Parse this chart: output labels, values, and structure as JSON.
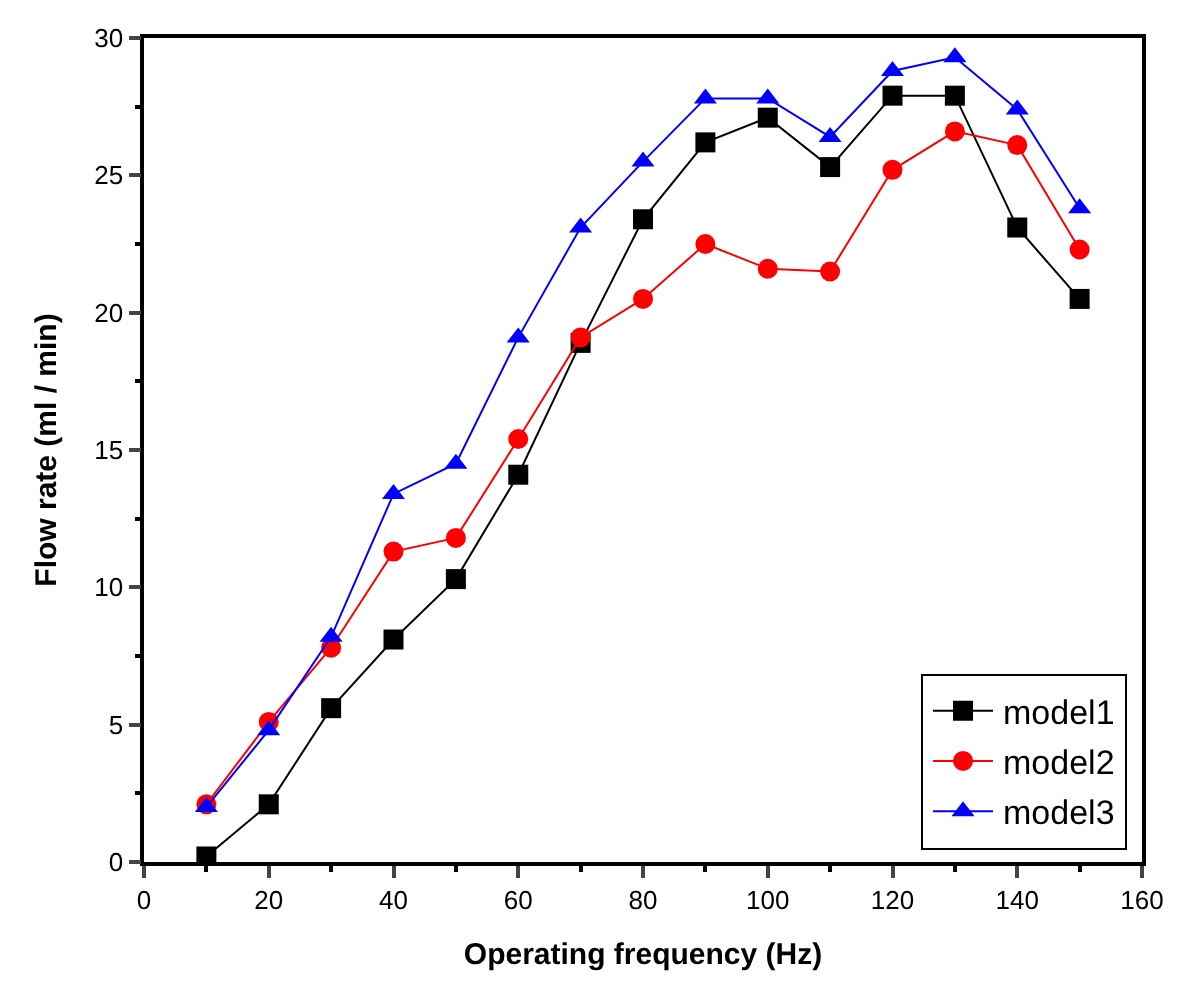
{
  "chart_data": {
    "type": "line",
    "xlabel": "Operating frequency (Hz)",
    "ylabel": "Flow rate (ml / min)",
    "x": [
      10,
      20,
      30,
      40,
      50,
      60,
      70,
      80,
      90,
      100,
      110,
      120,
      130,
      140,
      150
    ],
    "series": [
      {
        "name": "model1",
        "color": "#000000",
        "marker": "square",
        "values": [
          0.2,
          2.1,
          5.6,
          8.1,
          10.3,
          14.1,
          18.9,
          23.4,
          26.2,
          27.1,
          25.3,
          27.9,
          27.9,
          23.1,
          20.5
        ]
      },
      {
        "name": "model2",
        "color": "#ff0000",
        "marker": "circle",
        "values": [
          2.1,
          5.1,
          7.8,
          11.3,
          11.8,
          15.4,
          19.1,
          20.5,
          22.5,
          21.6,
          21.5,
          25.2,
          26.6,
          26.1,
          22.3
        ]
      },
      {
        "name": "model3",
        "color": "#0000ff",
        "marker": "triangle",
        "values": [
          2.0,
          4.8,
          8.2,
          13.4,
          14.5,
          19.1,
          23.1,
          25.5,
          27.8,
          27.8,
          26.4,
          28.8,
          29.3,
          27.4,
          23.8
        ]
      }
    ],
    "xlim": [
      0,
      160
    ],
    "xticks": [
      0,
      20,
      40,
      60,
      80,
      100,
      120,
      140,
      160
    ],
    "ylim": [
      0,
      30
    ],
    "yticks": [
      0,
      5,
      10,
      15,
      20,
      25,
      30
    ],
    "legend": "bottom right",
    "line_style": "solid"
  }
}
